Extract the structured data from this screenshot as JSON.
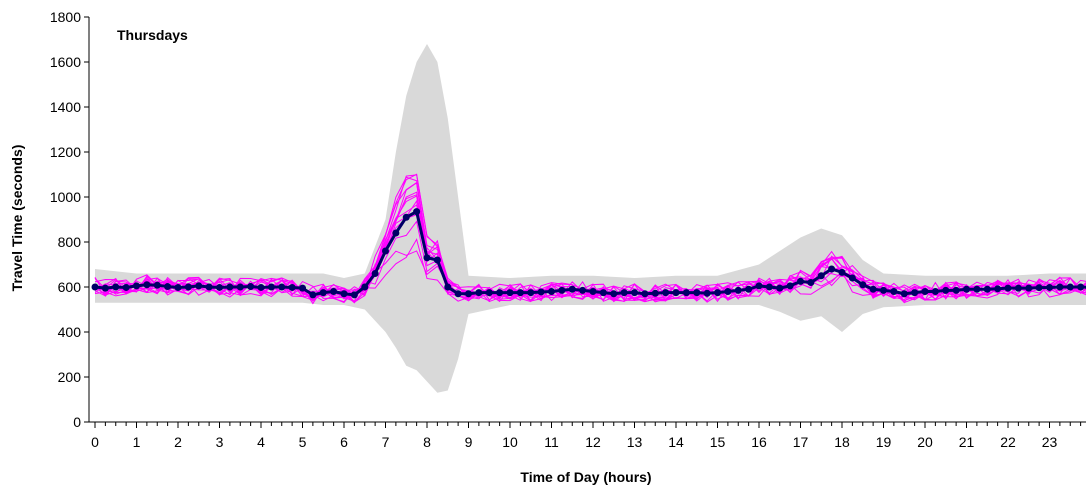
{
  "chart_data": {
    "type": "line",
    "title": "Thursdays",
    "xlabel": "Time of Day (hours)",
    "ylabel": "Travel Time (seconds)",
    "xlim": [
      0,
      24
    ],
    "ylim": [
      0,
      1800
    ],
    "x_ticks": [
      "0",
      "1",
      "2",
      "3",
      "4",
      "5",
      "6",
      "7",
      "8",
      "9",
      "10",
      "11",
      "12",
      "13",
      "14",
      "15",
      "16",
      "17",
      "18",
      "19",
      "20",
      "21",
      "22",
      "23"
    ],
    "y_ticks": [
      "0",
      "200",
      "400",
      "600",
      "800",
      "1000",
      "1200",
      "1400",
      "1600",
      "1800"
    ],
    "legend": "none",
    "grid": false,
    "colors": {
      "mean": "#000066",
      "individual": "#ff00ff",
      "band": "#d9d9d9"
    },
    "band": {
      "x": [
        0,
        1,
        2,
        3,
        4,
        5,
        5.5,
        6,
        6.5,
        7,
        7.25,
        7.5,
        7.75,
        8,
        8.25,
        8.5,
        8.75,
        9,
        10,
        11,
        12,
        13,
        14,
        15,
        16,
        16.5,
        17,
        17.5,
        18,
        18.5,
        19,
        20,
        21,
        22,
        23,
        24
      ],
      "upper": [
        680,
        660,
        660,
        660,
        660,
        660,
        660,
        640,
        660,
        900,
        1200,
        1450,
        1600,
        1680,
        1600,
        1350,
        1000,
        650,
        640,
        650,
        650,
        640,
        650,
        650,
        700,
        760,
        820,
        860,
        830,
        720,
        660,
        650,
        650,
        650,
        660,
        660
      ],
      "lower": [
        530,
        530,
        530,
        530,
        530,
        530,
        520,
        520,
        500,
        400,
        330,
        250,
        230,
        180,
        130,
        140,
        280,
        480,
        520,
        520,
        520,
        520,
        520,
        520,
        520,
        490,
        450,
        470,
        400,
        480,
        510,
        520,
        520,
        520,
        520,
        520
      ]
    },
    "series": [
      {
        "x": [
          0,
          0.25,
          0.5,
          0.75,
          1,
          1.25,
          1.5,
          1.75,
          2,
          2.25,
          2.5,
          2.75,
          3,
          3.25,
          3.5,
          3.75,
          4,
          4.25,
          4.5,
          4.75,
          5,
          5.25,
          5.5,
          5.75,
          6,
          6.25,
          6.5,
          6.75,
          7,
          7.25,
          7.5,
          7.75,
          8,
          8.25,
          8.5,
          8.75,
          9,
          9.25,
          9.5,
          9.75,
          10,
          10.25,
          10.5,
          10.75,
          11,
          11.25,
          11.5,
          11.75,
          12,
          12.25,
          12.5,
          12.75,
          13,
          13.25,
          13.5,
          13.75,
          14,
          14.25,
          14.5,
          14.75,
          15,
          15.25,
          15.5,
          15.75,
          16,
          16.25,
          16.5,
          16.75,
          17,
          17.25,
          17.5,
          17.75,
          18,
          18.25,
          18.5,
          18.75,
          19,
          19.25,
          19.5,
          19.75,
          20,
          20.25,
          20.5,
          20.75,
          21,
          21.25,
          21.5,
          21.75,
          22,
          22.25,
          22.5,
          22.75,
          23,
          23.25,
          23.5,
          23.75,
          24
        ],
        "values": [
          600,
          595,
          600,
          598,
          605,
          610,
          608,
          602,
          598,
          600,
          605,
          600,
          598,
          600,
          600,
          602,
          598,
          600,
          600,
          598,
          595,
          565,
          575,
          580,
          570,
          565,
          600,
          660,
          760,
          840,
          910,
          935,
          730,
          720,
          600,
          570,
          570,
          575,
          575,
          575,
          575,
          575,
          575,
          578,
          580,
          585,
          590,
          585,
          580,
          575,
          570,
          575,
          575,
          570,
          572,
          575,
          575,
          575,
          575,
          572,
          575,
          580,
          585,
          590,
          605,
          600,
          595,
          605,
          625,
          620,
          650,
          680,
          665,
          640,
          610,
          590,
          585,
          580,
          570,
          575,
          580,
          580,
          585,
          585,
          590,
          590,
          590,
          592,
          595,
          595,
          595,
          597,
          598,
          600,
          600,
          600,
          598
        ]
      }
    ]
  }
}
